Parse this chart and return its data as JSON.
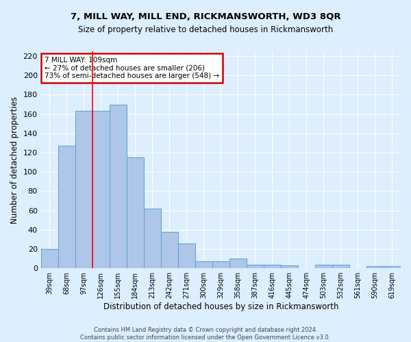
{
  "title": "7, MILL WAY, MILL END, RICKMANSWORTH, WD3 8QR",
  "subtitle": "Size of property relative to detached houses in Rickmansworth",
  "xlabel": "Distribution of detached houses by size in Rickmansworth",
  "ylabel": "Number of detached properties",
  "categories": [
    "39sqm",
    "68sqm",
    "97sqm",
    "126sqm",
    "155sqm",
    "184sqm",
    "213sqm",
    "242sqm",
    "271sqm",
    "300sqm",
    "329sqm",
    "358sqm",
    "387sqm",
    "416sqm",
    "445sqm",
    "474sqm",
    "503sqm",
    "532sqm",
    "561sqm",
    "590sqm",
    "619sqm"
  ],
  "values": [
    20,
    127,
    163,
    163,
    170,
    115,
    62,
    38,
    26,
    7,
    7,
    10,
    4,
    4,
    3,
    0,
    4,
    4,
    0,
    2,
    2
  ],
  "bar_color": "#aec6e8",
  "bar_edge_color": "#5a9fd4",
  "fig_background_color": "#ddeeff",
  "plot_background_color": "#ddeeff",
  "grid_color": "#ffffff",
  "red_line_x": 2.5,
  "ylim": [
    0,
    225
  ],
  "yticks": [
    0,
    20,
    40,
    60,
    80,
    100,
    120,
    140,
    160,
    180,
    200,
    220
  ],
  "annotation_title": "7 MILL WAY: 109sqm",
  "annotation_line1": "← 27% of detached houses are smaller (206)",
  "annotation_line2": "73% of semi-detached houses are larger (548) →",
  "annotation_box_color": "#ffffff",
  "annotation_box_edge_color": "#cc0000",
  "footer_line1": "Contains HM Land Registry data © Crown copyright and database right 2024.",
  "footer_line2": "Contains public sector information licensed under the Open Government Licence v3.0."
}
